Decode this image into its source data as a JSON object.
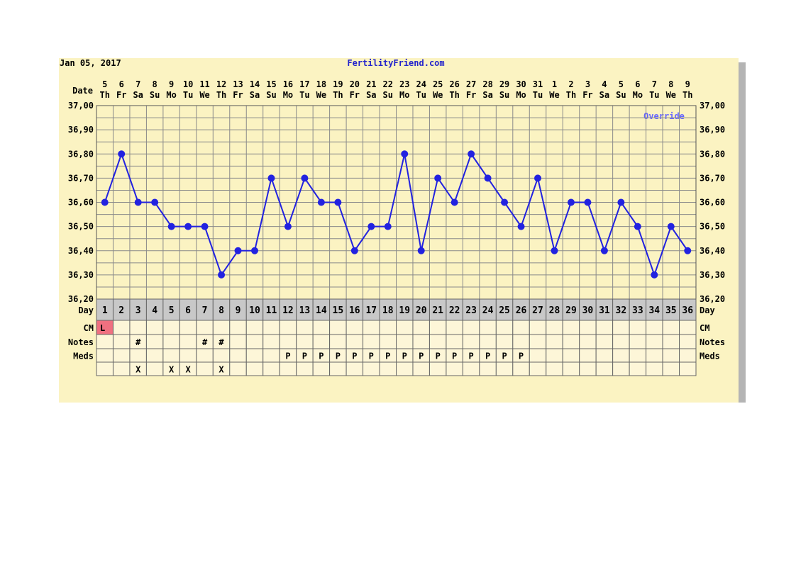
{
  "header": {
    "date_label": "Jan 05, 2017",
    "site_label": "FertilityFriend.com"
  },
  "labels": {
    "date": "Date",
    "day": "Day",
    "cm": "CM",
    "notes": "Notes",
    "meds": "Meds",
    "override": "Override"
  },
  "colors": {
    "background": "#fbf3c2",
    "grid": "#8a8a8a",
    "line": "#2222e0",
    "text": "#000000",
    "title_text": "#2222cc",
    "day_row_bg": "#c8c8c8",
    "cm_highlight": "#f07080",
    "override": "#6666ff"
  },
  "chart_data": {
    "type": "line",
    "title": "",
    "xlabel": "Day",
    "ylabel": "",
    "ylim": [
      36.2,
      37.0
    ],
    "y_ticks": [
      "37,00",
      "36,90",
      "36,80",
      "36,70",
      "36,60",
      "36,50",
      "36,40",
      "36,30",
      "36,20"
    ],
    "grid": true,
    "cycle_days": [
      "1",
      "2",
      "3",
      "4",
      "5",
      "6",
      "7",
      "8",
      "9",
      "10",
      "11",
      "12",
      "13",
      "14",
      "15",
      "16",
      "17",
      "18",
      "19",
      "20",
      "21",
      "22",
      "23",
      "24",
      "25",
      "26",
      "27",
      "28",
      "29",
      "30",
      "31",
      "32",
      "33",
      "34",
      "35",
      "36"
    ],
    "dates": [
      "5",
      "6",
      "7",
      "8",
      "9",
      "10",
      "11",
      "12",
      "13",
      "14",
      "15",
      "16",
      "17",
      "18",
      "19",
      "20",
      "21",
      "22",
      "23",
      "24",
      "25",
      "26",
      "27",
      "28",
      "29",
      "30",
      "31",
      "1",
      "2",
      "3",
      "4",
      "5",
      "6",
      "7",
      "8",
      "9"
    ],
    "weekdays": [
      "Th",
      "Fr",
      "Sa",
      "Su",
      "Mo",
      "Tu",
      "We",
      "Th",
      "Fr",
      "Sa",
      "Su",
      "Mo",
      "Tu",
      "We",
      "Th",
      "Fr",
      "Sa",
      "Su",
      "Mo",
      "Tu",
      "We",
      "Th",
      "Fr",
      "Sa",
      "Su",
      "Mo",
      "Tu",
      "We",
      "Th",
      "Fr",
      "Sa",
      "Su",
      "Mo",
      "Tu",
      "We",
      "Th"
    ],
    "series": [
      {
        "values": [
          36.6,
          36.8,
          36.6,
          36.6,
          36.5,
          36.5,
          36.5,
          36.3,
          36.4,
          36.4,
          36.7,
          36.5,
          36.7,
          36.6,
          36.6,
          36.4,
          36.5,
          36.5,
          36.8,
          36.4,
          36.7,
          36.6,
          36.8,
          36.7,
          36.6,
          36.5,
          36.7,
          36.4,
          36.6,
          36.6,
          36.4,
          36.6,
          36.5,
          36.3,
          36.5,
          36.4
        ]
      }
    ],
    "rows": {
      "cm": [
        "L",
        "",
        "",
        "",
        "",
        "",
        "",
        "",
        "",
        "",
        "",
        "",
        "",
        "",
        "",
        "",
        "",
        "",
        "",
        "",
        "",
        "",
        "",
        "",
        "",
        "",
        "",
        "",
        "",
        "",
        "",
        "",
        "",
        "",
        "",
        ""
      ],
      "notes": [
        "",
        "",
        "#",
        "",
        "",
        "",
        "#",
        "#",
        "",
        "",
        "",
        "",
        "",
        "",
        "",
        "",
        "",
        "",
        "",
        "",
        "",
        "",
        "",
        "",
        "",
        "",
        "",
        "",
        "",
        "",
        "",
        "",
        "",
        "",
        "",
        ""
      ],
      "meds": [
        "",
        "",
        "",
        "",
        "",
        "",
        "",
        "",
        "",
        "",
        "",
        "P",
        "P",
        "P",
        "P",
        "P",
        "P",
        "P",
        "P",
        "P",
        "P",
        "P",
        "P",
        "P",
        "P",
        "P",
        "",
        "",
        "",
        "",
        "",
        "",
        "",
        "",
        "",
        ""
      ],
      "extra": [
        "",
        "",
        "X",
        "",
        "X",
        "X",
        "",
        "X",
        "",
        "",
        "",
        "",
        "",
        "",
        "",
        "",
        "",
        "",
        "",
        "",
        "",
        "",
        "",
        "",
        "",
        "",
        "",
        "",
        "",
        "",
        "",
        "",
        "",
        "",
        "",
        ""
      ]
    }
  }
}
